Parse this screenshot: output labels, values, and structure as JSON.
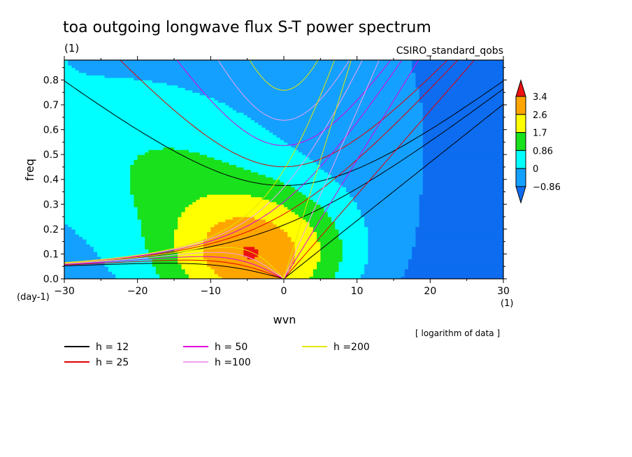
{
  "chart_data": {
    "type": "heatmap",
    "title": "toa outgoing longwave flux S-T power spectrum",
    "units_label": "(1)",
    "model_label": "CSIRO_standard_qobs",
    "xlabel": "wvn",
    "x_units": "(1)",
    "ylabel": "freq",
    "y_units": "(day-1)",
    "xlim": [
      -30,
      30
    ],
    "ylim": [
      0,
      0.88
    ],
    "x_ticks": [
      -30,
      -20,
      -10,
      0,
      10,
      20,
      30
    ],
    "x_tick_labels": [
      "−30",
      "−20",
      "−10",
      "0",
      "10",
      "20",
      "30"
    ],
    "y_ticks": [
      0,
      0.1,
      0.2,
      0.3,
      0.4,
      0.5,
      0.6,
      0.7,
      0.8
    ],
    "y_tick_labels": [
      "0.0",
      "0.1",
      "0.2",
      "0.3",
      "0.4",
      "0.5",
      "0.6",
      "0.7",
      "0.8"
    ],
    "note": "[ logarithm of data ]",
    "colorbar": {
      "levels": [
        -0.86,
        0,
        0.86,
        1.7,
        2.6,
        3.4
      ],
      "labels": [
        "−0.86",
        "0",
        "0.86",
        "1.7",
        "2.6",
        "3.4"
      ],
      "colors": [
        "#0d6cf0",
        "#14a0ff",
        "#00ffff",
        "#19e11c",
        "#ffff00",
        "#ffa500",
        "#ee1111"
      ]
    },
    "field": {
      "description": "log10 power spectrum, peak near wavenumber -4, frequency 0.09",
      "peak_value": 4.0,
      "peak_wvn": -4,
      "peak_freq": 0.09
    },
    "dispersion_curves": [
      {
        "name": "h = 12",
        "h": 12,
        "color": "#000000"
      },
      {
        "name": "h = 25",
        "h": 25,
        "color": "#e00000"
      },
      {
        "name": "h = 50",
        "h": 50,
        "color": "#e000e0"
      },
      {
        "name": "h =100",
        "h": 100,
        "color": "#f0a0f0"
      },
      {
        "name": "h =200",
        "h": 200,
        "color": "#e6e600"
      }
    ]
  }
}
